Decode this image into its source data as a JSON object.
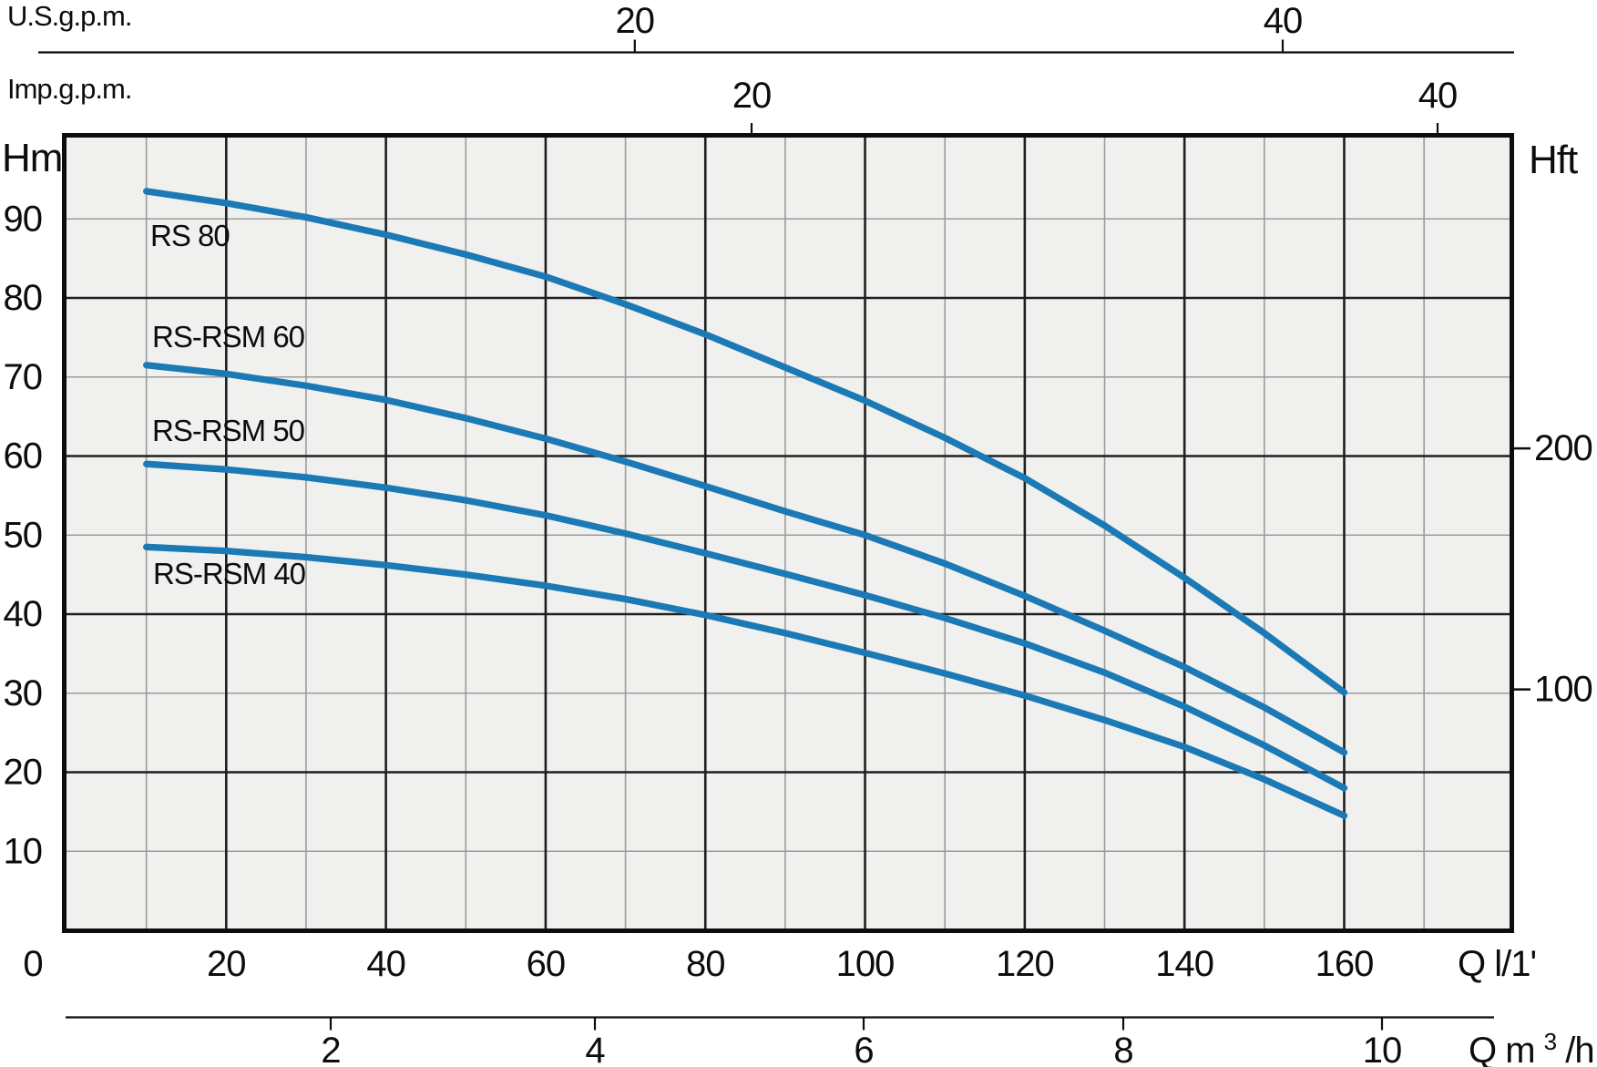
{
  "labels": {
    "us_gpm_title": "U.S.g.p.m.",
    "imp_gpm_title": "Imp.g.p.m.",
    "head_meters_unit": "Hm",
    "head_feet_unit": "Hft",
    "flow_lmin_unit": "Q l/1'",
    "flow_m3h_prefix": "Q m",
    "flow_m3h_sup": "3",
    "flow_m3h_suffix": "/h"
  },
  "colors": {
    "curve": "#1b7ab5",
    "grid_major": "#1f1f1f",
    "grid_minor": "#9b9b9b",
    "frame": "#0d0d0d",
    "axis_line": "#0d0d0d",
    "plot_background": "#f0f0ee",
    "page_background": "#ffffff",
    "text": "#0d0d0d"
  },
  "chart_data": {
    "type": "line",
    "title": "Pump performance curves: head vs flow",
    "x_axis": {
      "label": "Q l/1'",
      "min": 0,
      "max": 180,
      "major_step": 20,
      "minor_step": 10,
      "tick_labels": [
        0,
        20,
        40,
        60,
        80,
        100,
        120,
        140,
        160
      ]
    },
    "y_axis": {
      "label": "Hm",
      "min": 0,
      "max": 100,
      "major_step": 20,
      "minor_step": 10,
      "tick_labels": [
        90,
        80,
        70,
        60,
        50,
        40,
        30,
        20,
        10
      ]
    },
    "secondary_x_axes": [
      {
        "label": "U.S.g.p.m.",
        "position": "top",
        "ticks": [
          20,
          40
        ]
      },
      {
        "label": "Imp.g.p.m.",
        "position": "top",
        "ticks": [
          20,
          40
        ]
      },
      {
        "label": "Q m³/h",
        "position": "bottom",
        "ticks": [
          2,
          4,
          6,
          8,
          10
        ]
      }
    ],
    "secondary_y_axes": [
      {
        "label": "Hft",
        "position": "right",
        "ticks": [
          200,
          100
        ]
      }
    ],
    "grid": {
      "x_major": [
        20,
        40,
        60,
        80,
        100,
        120,
        140,
        160
      ],
      "x_minor": [
        10,
        30,
        50,
        70,
        90,
        110,
        130,
        150,
        170
      ],
      "y_major": [
        20,
        40,
        60,
        80
      ],
      "y_minor": [
        10,
        30,
        50,
        70,
        90
      ]
    },
    "series": [
      {
        "name": "RS 80",
        "points": [
          [
            10,
            93.5
          ],
          [
            20,
            92.0
          ],
          [
            30,
            90.2
          ],
          [
            40,
            88.0
          ],
          [
            50,
            85.5
          ],
          [
            60,
            82.7
          ],
          [
            70,
            79.2
          ],
          [
            80,
            75.4
          ],
          [
            90,
            71.2
          ],
          [
            100,
            67.0
          ],
          [
            110,
            62.3
          ],
          [
            120,
            57.2
          ],
          [
            130,
            51.2
          ],
          [
            140,
            44.6
          ],
          [
            150,
            37.6
          ],
          [
            160,
            30.1
          ]
        ]
      },
      {
        "name": "RS-RSM 60",
        "points": [
          [
            10,
            71.5
          ],
          [
            20,
            70.4
          ],
          [
            30,
            68.9
          ],
          [
            40,
            67.1
          ],
          [
            50,
            64.8
          ],
          [
            60,
            62.2
          ],
          [
            70,
            59.3
          ],
          [
            80,
            56.2
          ],
          [
            90,
            53.0
          ],
          [
            100,
            50.0
          ],
          [
            110,
            46.4
          ],
          [
            120,
            42.3
          ],
          [
            130,
            37.9
          ],
          [
            140,
            33.3
          ],
          [
            150,
            28.2
          ],
          [
            160,
            22.5
          ]
        ]
      },
      {
        "name": "RS-RSM 50",
        "points": [
          [
            10,
            59.0
          ],
          [
            20,
            58.3
          ],
          [
            30,
            57.3
          ],
          [
            40,
            56.0
          ],
          [
            50,
            54.4
          ],
          [
            60,
            52.5
          ],
          [
            70,
            50.2
          ],
          [
            80,
            47.7
          ],
          [
            90,
            45.1
          ],
          [
            100,
            42.4
          ],
          [
            110,
            39.5
          ],
          [
            120,
            36.3
          ],
          [
            130,
            32.6
          ],
          [
            140,
            28.3
          ],
          [
            150,
            23.4
          ],
          [
            160,
            18.0
          ]
        ]
      },
      {
        "name": "RS-RSM 40",
        "points": [
          [
            10,
            48.5
          ],
          [
            20,
            48.0
          ],
          [
            30,
            47.2
          ],
          [
            40,
            46.2
          ],
          [
            50,
            45.0
          ],
          [
            60,
            43.6
          ],
          [
            70,
            41.9
          ],
          [
            80,
            39.9
          ],
          [
            90,
            37.6
          ],
          [
            100,
            35.1
          ],
          [
            110,
            32.5
          ],
          [
            120,
            29.7
          ],
          [
            130,
            26.6
          ],
          [
            140,
            23.2
          ],
          [
            150,
            19.1
          ],
          [
            160,
            14.5
          ]
        ]
      }
    ],
    "legend_position": "labels-on-plot"
  }
}
